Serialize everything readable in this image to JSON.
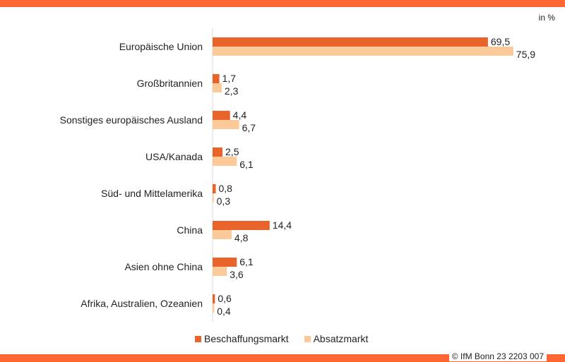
{
  "chart_data": {
    "type": "bar",
    "orientation": "horizontal",
    "unit_label": "in %",
    "categories": [
      "Europäische Union",
      "Großbritannien",
      "Sonstiges europäisches Ausland",
      "USA/Kanada",
      "Süd- und Mittelamerika",
      "China",
      "Asien ohne China",
      "Afrika, Australien, Ozeanien"
    ],
    "series": [
      {
        "name": "Beschaffungsmarkt",
        "color": "#e8642a",
        "values": [
          69.5,
          1.7,
          4.4,
          2.5,
          0.8,
          14.4,
          6.1,
          0.6
        ],
        "labels": [
          "69,5",
          "1,7",
          "4,4",
          "2,5",
          "0,8",
          "14,4",
          "6,1",
          "0,6"
        ]
      },
      {
        "name": "Absatzmarkt",
        "color": "#fcc998",
        "values": [
          75.9,
          2.3,
          6.7,
          6.1,
          0.3,
          4.8,
          3.6,
          0.4
        ],
        "labels": [
          "75,9",
          "2,3",
          "6,7",
          "6,1",
          "0,3",
          "4,8",
          "3,6",
          "0,4"
        ]
      }
    ],
    "legend": "bottom",
    "grid": false
  },
  "footer": {
    "copyright": "© IfM  Bonn 23 2203 007"
  }
}
